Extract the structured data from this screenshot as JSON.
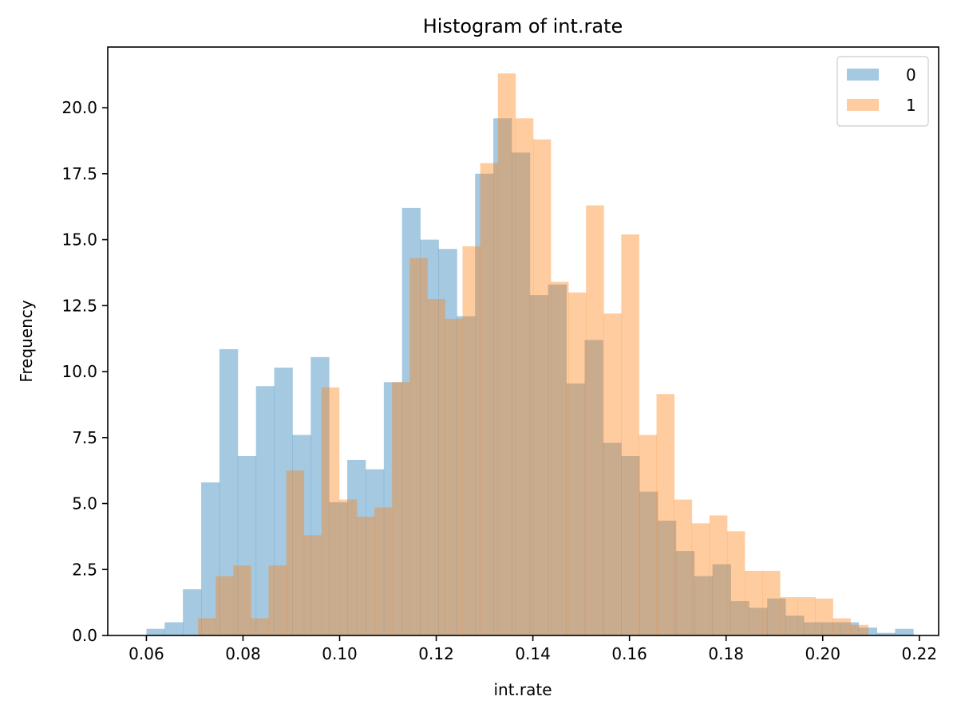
{
  "chart_data": {
    "type": "histogram",
    "title": "Histogram of int.rate",
    "xlabel": "int.rate",
    "ylabel": "Frequency",
    "xlim": [
      0.052,
      0.224
    ],
    "ylim": [
      0,
      22.3
    ],
    "x_ticks": [
      0.06,
      0.08,
      0.1,
      0.12,
      0.14,
      0.16,
      0.18,
      0.2,
      0.22
    ],
    "x_tick_labels": [
      "0.06",
      "0.08",
      "0.10",
      "0.12",
      "0.14",
      "0.16",
      "0.18",
      "0.20",
      "0.22"
    ],
    "y_ticks": [
      0,
      2.5,
      5,
      7.5,
      10,
      12.5,
      15,
      17.5,
      20
    ],
    "y_tick_labels": [
      "0.0",
      "2.5",
      "5.0",
      "7.5",
      "10.0",
      "12.5",
      "15.0",
      "17.5",
      "20.0"
    ],
    "grid": false,
    "legend_position": "top-right",
    "series": [
      {
        "name": "0",
        "color": "#1f77b4",
        "alpha": 0.4,
        "bin_width": 0.00378,
        "bin_start": 0.06,
        "values": [
          0.25,
          0.5,
          1.75,
          5.8,
          10.85,
          6.8,
          9.45,
          10.15,
          7.6,
          10.55,
          5.05,
          6.65,
          6.3,
          9.6,
          16.2,
          15.0,
          14.65,
          12.1,
          17.5,
          19.6,
          18.3,
          12.9,
          13.3,
          9.55,
          11.2,
          7.3,
          6.8,
          5.45,
          4.35,
          3.2,
          2.25,
          2.7,
          1.3,
          1.05,
          1.4,
          0.75,
          0.5,
          0.5,
          0.5,
          0.3,
          0.1,
          0.25
        ]
      },
      {
        "name": "1",
        "color": "#ff7f0e",
        "alpha": 0.4,
        "bin_width": 0.00365,
        "bin_start": 0.0707,
        "values": [
          0.65,
          2.25,
          2.65,
          0.65,
          2.65,
          6.25,
          3.8,
          9.4,
          5.15,
          4.5,
          4.85,
          9.6,
          14.3,
          12.75,
          12.0,
          14.75,
          17.9,
          21.3,
          19.6,
          18.8,
          13.4,
          13.0,
          16.3,
          12.2,
          15.2,
          7.6,
          9.15,
          5.15,
          4.25,
          4.55,
          3.95,
          2.45,
          2.45,
          1.45,
          1.45,
          1.4,
          0.65,
          0.4
        ]
      }
    ]
  }
}
